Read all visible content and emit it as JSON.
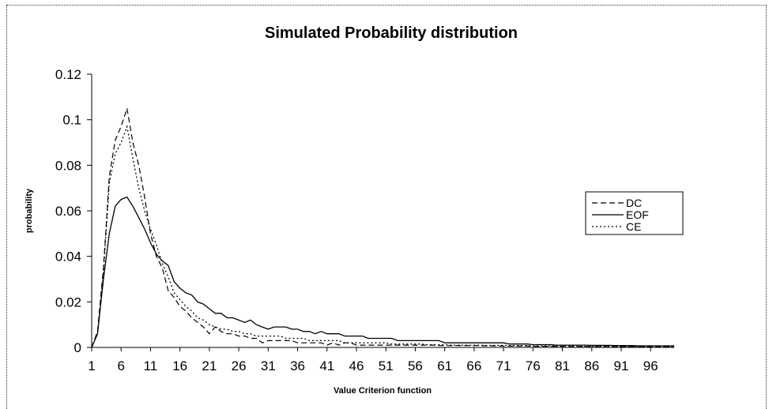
{
  "chart_data": {
    "type": "line",
    "title": "Simulated Probability distribution",
    "xlabel": "Value Criterion function",
    "ylabel": "probability",
    "ylim": [
      0,
      0.12
    ],
    "yticks": [
      "0",
      "0.02",
      "0.04",
      "0.06",
      "0.08",
      "0.1",
      "0.12"
    ],
    "xticks": [
      "1",
      "6",
      "11",
      "16",
      "21",
      "26",
      "31",
      "36",
      "41",
      "46",
      "51",
      "56",
      "61",
      "66",
      "71",
      "76",
      "81",
      "86",
      "91",
      "96"
    ],
    "x_range": [
      1,
      100
    ],
    "grid": false,
    "legend_position": "right",
    "x": [
      1,
      2,
      3,
      4,
      5,
      6,
      7,
      8,
      9,
      10,
      11,
      12,
      13,
      14,
      15,
      16,
      17,
      18,
      19,
      20,
      21,
      22,
      23,
      24,
      25,
      26,
      27,
      28,
      29,
      30,
      31,
      32,
      33,
      34,
      35,
      36,
      37,
      38,
      39,
      40,
      41,
      42,
      43,
      44,
      45,
      46,
      47,
      48,
      49,
      50,
      51,
      52,
      53,
      54,
      55,
      56,
      57,
      58,
      59,
      60,
      61,
      62,
      63,
      64,
      65,
      66,
      67,
      68,
      69,
      70,
      71,
      72,
      73,
      74,
      75,
      76,
      77,
      78,
      79,
      80,
      81,
      82,
      83,
      84,
      85,
      86,
      87,
      88,
      89,
      90,
      91,
      92,
      93,
      94,
      95,
      96,
      97,
      98,
      99,
      100
    ],
    "series": [
      {
        "name": "DC",
        "dash": "dashed",
        "values": [
          0,
          0.007,
          0.035,
          0.075,
          0.091,
          0.097,
          0.105,
          0.09,
          0.08,
          0.066,
          0.05,
          0.04,
          0.035,
          0.025,
          0.022,
          0.018,
          0.016,
          0.013,
          0.011,
          0.009,
          0.006,
          0.009,
          0.007,
          0.006,
          0.006,
          0.005,
          0.005,
          0.004,
          0.004,
          0.002,
          0.003,
          0.003,
          0.003,
          0.003,
          0.003,
          0.002,
          0.002,
          0.002,
          0.002,
          0.002,
          0.001,
          0.002,
          0.001,
          0.002,
          0.002,
          0.001,
          0.001,
          0.001,
          0.001,
          0.001,
          0.001,
          0.001,
          0.001,
          0.001,
          0.001,
          0.001,
          0.001,
          0.001,
          0.001,
          0.0008,
          0.0008,
          0.0008,
          0.0008,
          0.0008,
          0.0008,
          0.0008,
          0.0008,
          0.0007,
          0.0007,
          0.0007,
          0.0006,
          0.0006,
          0.0006,
          0.0006,
          0.0006,
          0.0005,
          0.0005,
          0.0005,
          0.0005,
          0.0005,
          0.0005,
          0.0004,
          0.0004,
          0.0004,
          0.0004,
          0.0004,
          0.0004,
          0.0004,
          0.0004,
          0.0003,
          0.0003,
          0.0003,
          0.0003,
          0.0003,
          0.0003,
          0.0003,
          0.0003,
          0.0003,
          0.0003,
          0.0003
        ]
      },
      {
        "name": "EOF",
        "dash": "solid",
        "values": [
          0,
          0.006,
          0.03,
          0.05,
          0.062,
          0.065,
          0.066,
          0.062,
          0.057,
          0.052,
          0.046,
          0.041,
          0.038,
          0.036,
          0.029,
          0.026,
          0.024,
          0.023,
          0.02,
          0.019,
          0.017,
          0.015,
          0.015,
          0.013,
          0.013,
          0.012,
          0.011,
          0.012,
          0.01,
          0.009,
          0.008,
          0.009,
          0.009,
          0.009,
          0.008,
          0.008,
          0.007,
          0.007,
          0.006,
          0.007,
          0.006,
          0.006,
          0.006,
          0.005,
          0.005,
          0.005,
          0.005,
          0.004,
          0.004,
          0.004,
          0.004,
          0.004,
          0.003,
          0.003,
          0.003,
          0.003,
          0.003,
          0.003,
          0.003,
          0.003,
          0.002,
          0.002,
          0.002,
          0.002,
          0.002,
          0.002,
          0.002,
          0.002,
          0.002,
          0.002,
          0.002,
          0.0015,
          0.0015,
          0.0015,
          0.0015,
          0.0012,
          0.0012,
          0.0012,
          0.0012,
          0.001,
          0.001,
          0.001,
          0.001,
          0.001,
          0.001,
          0.0009,
          0.0009,
          0.0009,
          0.0009,
          0.0008,
          0.0008,
          0.0008,
          0.0008,
          0.0007,
          0.0007,
          0.0007,
          0.0007,
          0.0007,
          0.0007,
          0.0007
        ]
      },
      {
        "name": "CE",
        "dash": "dotted",
        "values": [
          0,
          0.006,
          0.033,
          0.072,
          0.085,
          0.09,
          0.097,
          0.083,
          0.07,
          0.06,
          0.052,
          0.045,
          0.037,
          0.031,
          0.024,
          0.021,
          0.018,
          0.016,
          0.013,
          0.012,
          0.01,
          0.009,
          0.008,
          0.008,
          0.007,
          0.007,
          0.006,
          0.006,
          0.005,
          0.005,
          0.005,
          0.005,
          0.005,
          0.004,
          0.004,
          0.004,
          0.004,
          0.003,
          0.003,
          0.003,
          0.003,
          0.003,
          0.003,
          0.002,
          0.002,
          0.002,
          0.002,
          0.002,
          0.002,
          0.002,
          0.002,
          0.0015,
          0.0015,
          0.0015,
          0.0015,
          0.0015,
          0.0015,
          0.0012,
          0.0012,
          0.0012,
          0.0012,
          0.001,
          0.001,
          0.001,
          0.001,
          0.001,
          0.001,
          0.0009,
          0.0009,
          0.0009,
          0.0009,
          0.0008,
          0.0008,
          0.0008,
          0.0008,
          0.0007,
          0.0007,
          0.0007,
          0.0007,
          0.0006,
          0.0006,
          0.0006,
          0.0006,
          0.0005,
          0.0005,
          0.0005,
          0.0005,
          0.0005,
          0.0005,
          0.0004,
          0.0004,
          0.0004,
          0.0004,
          0.0004,
          0.0004,
          0.0004,
          0.0004,
          0.0004,
          0.0004,
          0.0004
        ]
      }
    ]
  }
}
